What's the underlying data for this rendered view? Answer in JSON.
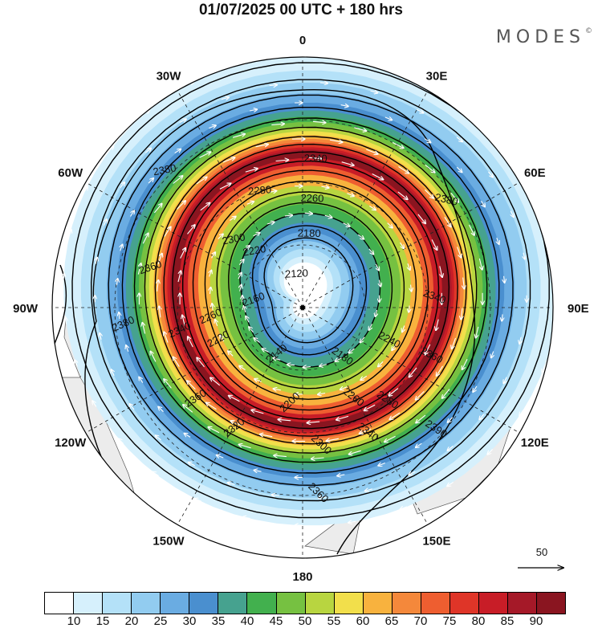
{
  "header": {
    "title": "01/07/2025  00 UTC  + 180 hrs",
    "brand": "MODES",
    "brand_mark": "©"
  },
  "map": {
    "projection": "south-polar-stereographic",
    "longitude_labels": [
      {
        "text": "0",
        "lon": 0
      },
      {
        "text": "30E",
        "lon": 30
      },
      {
        "text": "60E",
        "lon": 60
      },
      {
        "text": "90E",
        "lon": 90
      },
      {
        "text": "120E",
        "lon": 120
      },
      {
        "text": "150E",
        "lon": 150
      },
      {
        "text": "180",
        "lon": 180
      },
      {
        "text": "150W",
        "lon": -150
      },
      {
        "text": "120W",
        "lon": -120
      },
      {
        "text": "90W",
        "lon": -90
      },
      {
        "text": "60W",
        "lon": -60
      },
      {
        "text": "30W",
        "lon": -30
      }
    ],
    "shaded_field": "wind speed",
    "contour_field": "geopotential height",
    "contour_labels": [
      {
        "text": "2380",
        "lon": -45,
        "r": 0.78
      },
      {
        "text": "2380",
        "lon": -95,
        "r": 0.72
      },
      {
        "text": "2380",
        "lon": 53,
        "r": 0.72
      },
      {
        "text": "2390",
        "lon": 132,
        "r": 0.72
      },
      {
        "text": "2360",
        "lon": -75,
        "r": 0.63
      },
      {
        "text": "2360",
        "lon": -130,
        "r": 0.56
      },
      {
        "text": "2360",
        "lon": 110,
        "r": 0.55
      },
      {
        "text": "2360",
        "lon": 175,
        "r": 0.74
      },
      {
        "text": "2340",
        "lon": 5,
        "r": 0.6
      },
      {
        "text": "2340",
        "lon": -100,
        "r": 0.5
      },
      {
        "text": "2340",
        "lon": 85,
        "r": 0.53
      },
      {
        "text": "2340",
        "lon": 152,
        "r": 0.56
      },
      {
        "text": "2320",
        "lon": -150,
        "r": 0.55
      },
      {
        "text": "2300",
        "lon": -45,
        "r": 0.39
      },
      {
        "text": "2300",
        "lon": 172,
        "r": 0.55
      },
      {
        "text": "2280",
        "lon": -20,
        "r": 0.5
      },
      {
        "text": "2280",
        "lon": 137,
        "r": 0.5
      },
      {
        "text": "2260",
        "lon": 5,
        "r": 0.44
      },
      {
        "text": "2260",
        "lon": -95,
        "r": 0.37
      },
      {
        "text": "2260",
        "lon": 150,
        "r": 0.41
      },
      {
        "text": "2240",
        "lon": 110,
        "r": 0.37
      },
      {
        "text": "2220",
        "lon": -40,
        "r": 0.3
      },
      {
        "text": "2220",
        "lon": -110,
        "r": 0.36
      },
      {
        "text": "2200",
        "lon": -172,
        "r": 0.38
      },
      {
        "text": "2180",
        "lon": 5,
        "r": 0.3
      },
      {
        "text": "2180",
        "lon": 140,
        "r": 0.25
      },
      {
        "text": "2160",
        "lon": -80,
        "r": 0.2
      },
      {
        "text": "2140",
        "lon": -150,
        "r": 0.21
      },
      {
        "text": "2120",
        "lon": -10,
        "r": 0.14
      }
    ]
  },
  "colorbar": {
    "colors": [
      "#ffffff",
      "#d6f0fc",
      "#b4e1f8",
      "#92ccf0",
      "#6aace2",
      "#4a8fcf",
      "#46a28f",
      "#42b04e",
      "#76c141",
      "#b8d540",
      "#f2df4b",
      "#f8b23e",
      "#f4883b",
      "#ee5e30",
      "#df3528",
      "#c81d27",
      "#a51928",
      "#8a1520"
    ],
    "tick_labels": [
      "10",
      "15",
      "20",
      "25",
      "30",
      "35",
      "40",
      "45",
      "50",
      "55",
      "60",
      "65",
      "70",
      "75",
      "80",
      "85",
      "90"
    ]
  },
  "vector_reference": {
    "label": "50"
  }
}
